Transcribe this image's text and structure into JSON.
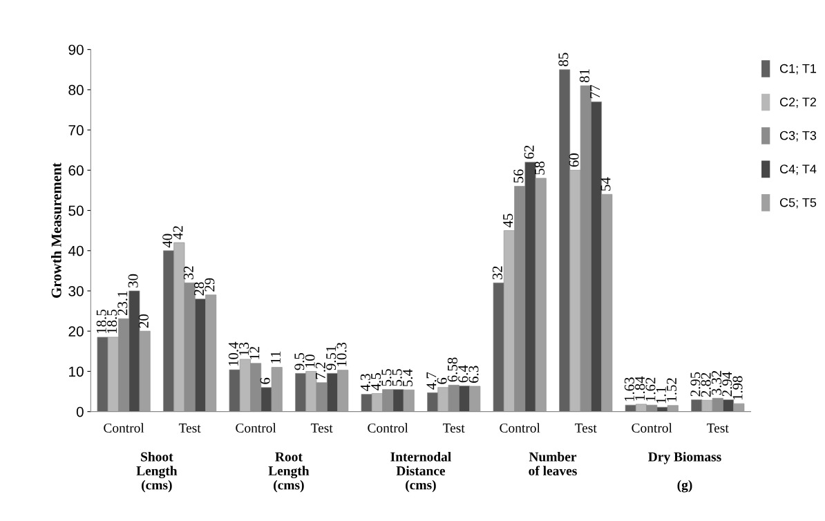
{
  "chart_data": {
    "type": "bar",
    "ylabel": "Growth Measurement",
    "categories": [
      "Control",
      "Test",
      "Control",
      "Test",
      "Control",
      "Test",
      "Control",
      "Test",
      "Control",
      "Test"
    ],
    "series": [
      {
        "name": "C1; T1",
        "color": "#606060",
        "values": [
          18.5,
          40,
          10.4,
          9.5,
          4.3,
          4.7,
          32,
          85,
          1.63,
          2.95
        ]
      },
      {
        "name": "C2; T2",
        "color": "#b8b8b8",
        "values": [
          18.5,
          42,
          13,
          10,
          4.5,
          6,
          45,
          60,
          1.84,
          2.82
        ]
      },
      {
        "name": "C3; T3",
        "color": "#8c8c8c",
        "values": [
          23.1,
          32,
          12,
          7.2,
          5.5,
          6.58,
          56,
          81,
          1.62,
          3.32
        ]
      },
      {
        "name": "C4; T4",
        "color": "#474747",
        "values": [
          30,
          28,
          6,
          9.51,
          5.5,
          6.4,
          62,
          77,
          1.1,
          2.94
        ]
      },
      {
        "name": "C5; T5",
        "color": "#a0a0a0",
        "values": [
          20,
          29,
          11,
          10.3,
          5.4,
          6.3,
          58,
          54,
          1.52,
          1.98
        ]
      }
    ],
    "data_labels": true,
    "ylim": [
      0,
      90
    ],
    "yticks": [
      0,
      10,
      20,
      30,
      40,
      50,
      60,
      70,
      80,
      90
    ],
    "grid": false,
    "legend": "right",
    "annotations": [
      "Shoot\nLength\n(cms)",
      "Root\nLength\n(cms)",
      "Internodal\nDistance\n(cms)",
      "Number\nof leaves",
      "Dry Biomass\n\n(g)"
    ]
  }
}
